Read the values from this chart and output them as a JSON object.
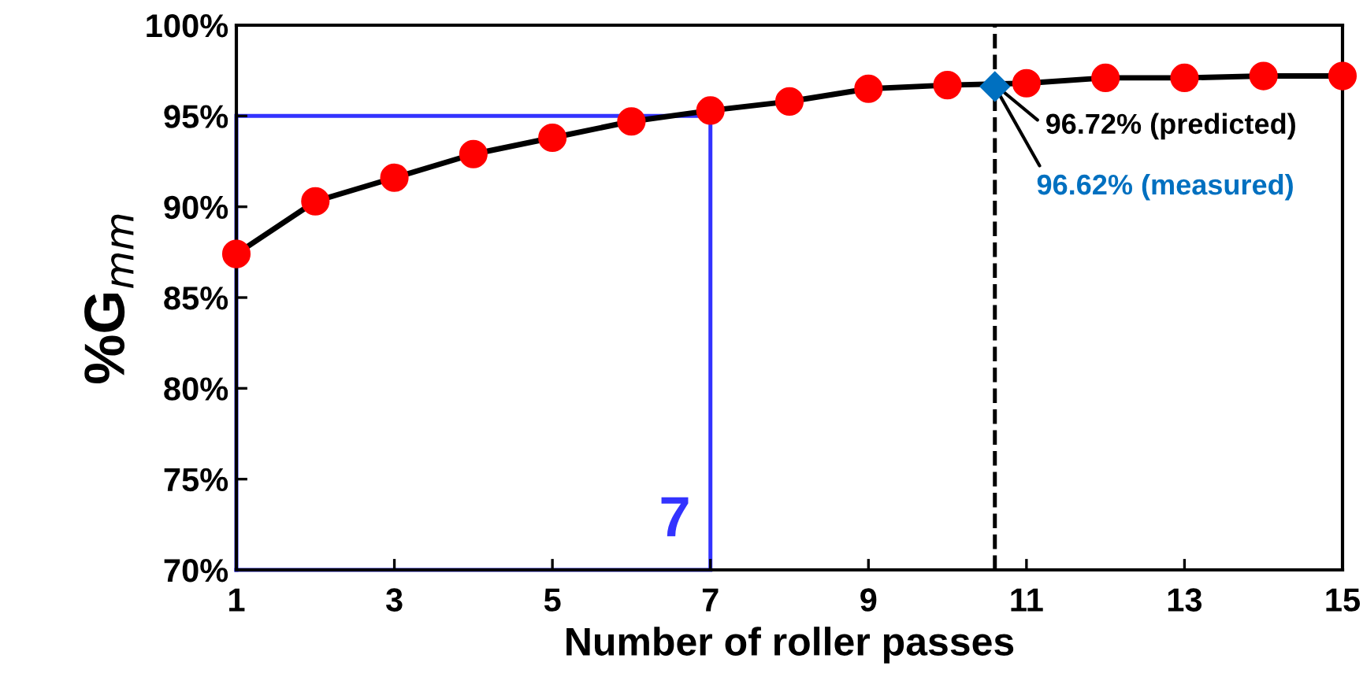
{
  "chart_data": {
    "type": "line",
    "xlabel": "Number of roller passes",
    "ylabel": "%G$_{mm}$",
    "x": [
      1,
      2,
      3,
      4,
      5,
      6,
      7,
      8,
      9,
      10,
      11,
      12,
      13,
      14,
      15
    ],
    "series": [
      {
        "color": "#ff0000",
        "marker": "circle",
        "values": [
          87.4,
          90.3,
          91.6,
          92.9,
          93.8,
          94.7,
          95.3,
          95.8,
          96.5,
          96.7,
          96.8,
          97.1,
          97.1,
          97.2,
          97.2
        ]
      },
      {
        "type": "scatter",
        "color": "#0070c0",
        "marker": "diamond",
        "x": [
          10.6
        ],
        "values": [
          96.62
        ]
      }
    ],
    "xlim": [
      1,
      15
    ],
    "xticks": [
      1,
      3,
      5,
      7,
      9,
      11,
      13,
      15
    ],
    "ylim": [
      70,
      100
    ],
    "yticks": [
      {
        "value": 70,
        "label": "70%"
      },
      {
        "value": 75,
        "label": "75%"
      },
      {
        "value": 80,
        "label": "80%"
      },
      {
        "value": 85,
        "label": "85%"
      },
      {
        "value": 90,
        "label": "90%"
      },
      {
        "value": 95,
        "label": "95%"
      },
      {
        "value": 100,
        "label": "100%"
      }
    ],
    "ref_lines": [
      {
        "axis": "x",
        "value": 10.6,
        "color": "#000000",
        "line_style": "dashed"
      },
      {
        "axis": "x",
        "value": 7,
        "label": "7",
        "color": "#3333ff",
        "line_style": "solid"
      },
      {
        "axis": "y",
        "value": 95,
        "color": "#3333ff",
        "line_style": "solid"
      }
    ],
    "annotations": [
      {
        "text": "96.72% (predicted)",
        "x": 10.6,
        "y": 96.72
      },
      {
        "text": "96.62% (measured)",
        "x": 10.6,
        "y": 96.62
      }
    ],
    "grid": false,
    "legend": false
  }
}
